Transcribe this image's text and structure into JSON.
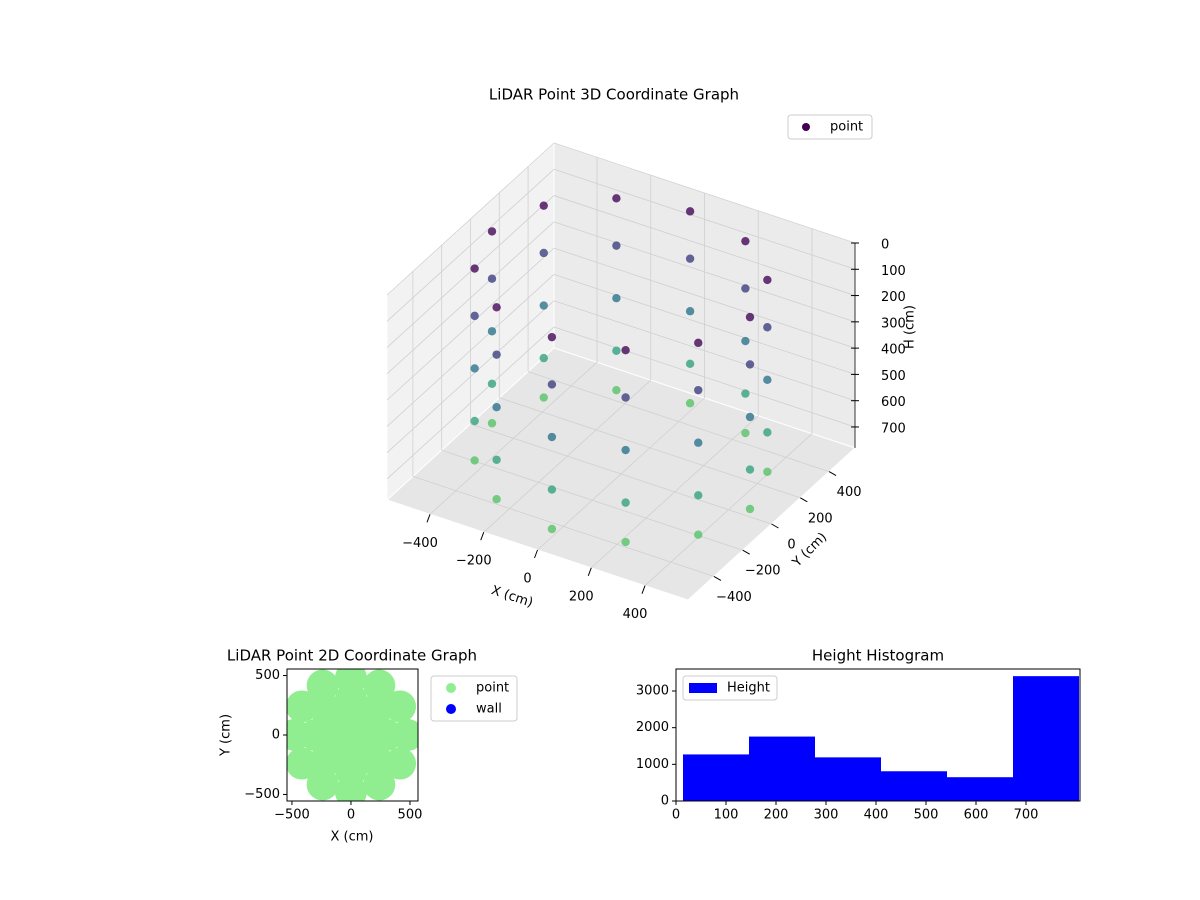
{
  "chart_data": [
    {
      "type": "scatter3d",
      "title": "LiDAR Point 3D Coordinate Graph",
      "xlabel": "X (cm)",
      "ylabel": "Y (cm)",
      "zlabel": "H (cm)",
      "legend": "upper right",
      "colormap": "viridis",
      "zinverted": true,
      "series": [
        {
          "name": "point",
          "color": "#440154",
          "x": [
            480,
            416,
            240,
            0,
            -240,
            -416,
            -480,
            -416,
            -240,
            0,
            240,
            416,
            480,
            416,
            240,
            0,
            -240,
            -416,
            -480,
            -416,
            -240,
            0,
            240,
            416,
            480,
            416,
            240,
            0,
            -240,
            -416,
            -480,
            -416,
            -240,
            0,
            240,
            416,
            480,
            416,
            240,
            0,
            -240,
            -416,
            -480,
            -416,
            -240,
            0,
            240,
            416,
            480,
            416,
            240,
            0,
            -240,
            -416,
            -480,
            -416,
            -240,
            0,
            240,
            416
          ],
          "y": [
            0,
            240,
            416,
            480,
            416,
            240,
            0,
            -240,
            -416,
            -480,
            -416,
            -240,
            0,
            240,
            416,
            480,
            416,
            240,
            0,
            -240,
            -416,
            -480,
            -416,
            -240,
            0,
            240,
            416,
            480,
            416,
            240,
            0,
            -240,
            -416,
            -480,
            -416,
            -240,
            0,
            240,
            416,
            480,
            416,
            240,
            0,
            -240,
            -416,
            -480,
            -416,
            -240,
            0,
            240,
            416,
            480,
            416,
            240,
            0,
            -240,
            -416,
            -480,
            -416,
            -240
          ],
          "h": [
            20,
            20,
            20,
            20,
            20,
            20,
            20,
            20,
            20,
            20,
            20,
            20,
            200,
            200,
            200,
            200,
            200,
            200,
            200,
            200,
            200,
            200,
            200,
            200,
            400,
            400,
            400,
            400,
            400,
            400,
            400,
            400,
            400,
            400,
            400,
            400,
            600,
            600,
            600,
            600,
            600,
            600,
            600,
            600,
            600,
            600,
            600,
            600,
            750,
            750,
            750,
            750,
            750,
            750,
            750,
            750,
            750,
            750,
            750,
            750
          ]
        }
      ],
      "xlim": [
        -560,
        560
      ],
      "ylim": [
        -580,
        580
      ],
      "zlim": [
        0,
        780
      ],
      "xticks": [
        {
          "value": -400,
          "label": "−400"
        },
        {
          "value": -200,
          "label": "−200"
        },
        0,
        200,
        400
      ],
      "yticks": [
        {
          "value": -400,
          "label": "−400"
        },
        {
          "value": -200,
          "label": "−200"
        },
        0,
        200,
        400
      ],
      "zticks": [
        0,
        100,
        200,
        300,
        400,
        500,
        600,
        700
      ]
    },
    {
      "type": "scatter",
      "title": "LiDAR Point 2D Coordinate Graph",
      "xlabel": "X (cm)",
      "ylabel": "Y (cm)",
      "legend": "outside right",
      "series": [
        {
          "name": "point",
          "color": "#90ee90",
          "x": [
            480,
            416,
            240,
            0,
            -240,
            -416,
            -480,
            -416,
            -240,
            0,
            240,
            416,
            300,
            212,
            0,
            -212,
            -300,
            -212,
            0,
            212,
            120,
            0,
            -120,
            0,
            0
          ],
          "y": [
            0,
            240,
            416,
            480,
            416,
            240,
            0,
            -240,
            -416,
            -480,
            -416,
            -240,
            0,
            212,
            300,
            212,
            0,
            -212,
            -300,
            -212,
            0,
            120,
            0,
            -120,
            0
          ]
        },
        {
          "name": "wall",
          "color": "#0000ff",
          "x": [],
          "y": []
        }
      ],
      "xlim": [
        -542,
        568
      ],
      "ylim": [
        -555,
        555
      ],
      "xticks": [
        {
          "value": -500,
          "label": "−500"
        },
        0,
        500
      ],
      "yticks": [
        {
          "value": -500,
          "label": "−500"
        },
        0,
        500
      ]
    },
    {
      "type": "histogram",
      "title": "Height Histogram",
      "legend": "upper left",
      "bins": [
        14,
        146,
        278,
        410,
        542,
        674,
        806
      ],
      "series": [
        {
          "name": "Height",
          "color": "#0000ff",
          "values": [
            1270,
            1757,
            1190,
            811,
            649,
            3405
          ]
        }
      ],
      "xlim": [
        0,
        808
      ],
      "ylim": [
        0,
        3600
      ],
      "xticks": [
        0,
        100,
        200,
        300,
        400,
        500,
        600,
        700
      ],
      "yticks": [
        0,
        1000,
        2000,
        3000
      ]
    }
  ]
}
